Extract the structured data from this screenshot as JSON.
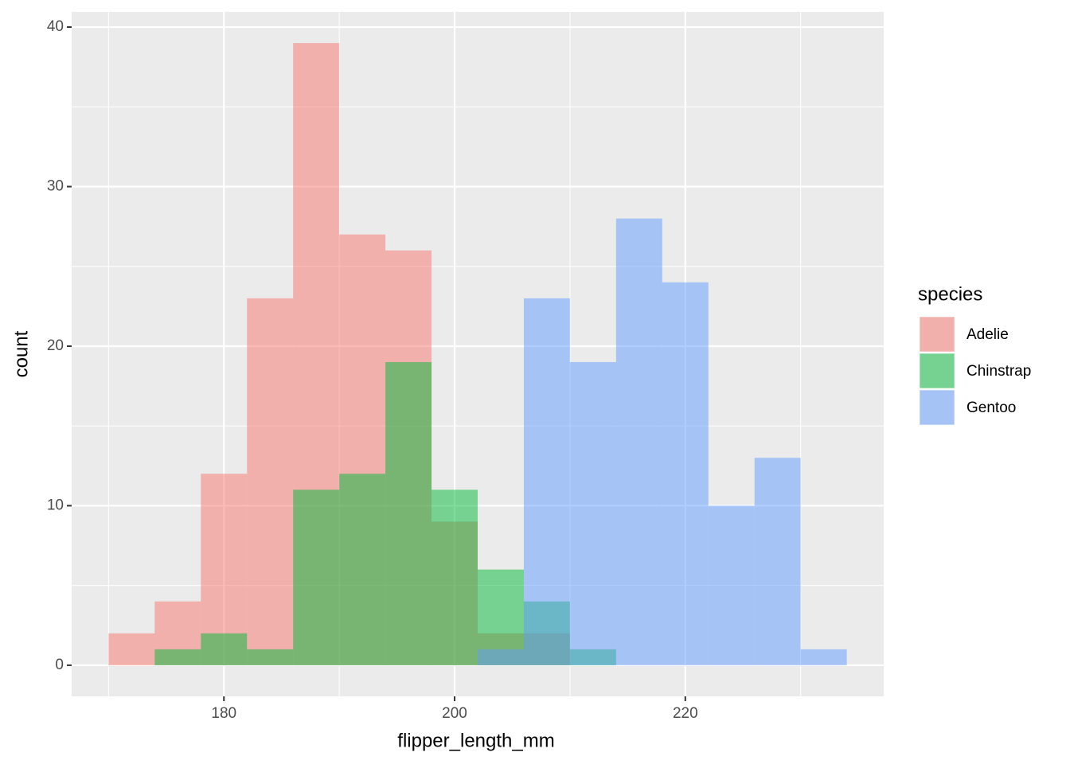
{
  "chart_data": {
    "type": "histogram",
    "x_label": "flipper_length_mm",
    "y_label": "count",
    "legend_title": "species",
    "bins": [
      170,
      174,
      178,
      182,
      186,
      190,
      194,
      198,
      202,
      206,
      210,
      214,
      218,
      222,
      226,
      230,
      234
    ],
    "series": [
      {
        "name": "Adelie",
        "color": "#F8766D",
        "values": [
          2,
          4,
          12,
          23,
          39,
          27,
          26,
          9,
          2,
          2,
          0,
          0,
          0,
          0,
          0,
          0
        ]
      },
      {
        "name": "Chinstrap",
        "color": "#00BA38",
        "values": [
          0,
          1,
          2,
          1,
          11,
          12,
          19,
          11,
          6,
          4,
          1,
          0,
          0,
          0,
          0,
          0
        ]
      },
      {
        "name": "Gentoo",
        "color": "#619CFF",
        "values": [
          0,
          0,
          0,
          0,
          0,
          0,
          0,
          0,
          1,
          23,
          19,
          28,
          24,
          10,
          13,
          1
        ]
      }
    ],
    "opacity": 0.5,
    "xlim": [
      166.8,
      237.2
    ],
    "ylim": [
      -1.95,
      40.95
    ],
    "xticks": [
      180,
      200,
      220
    ],
    "yticks": [
      0,
      10,
      20,
      30,
      40
    ],
    "x_minor_ticks": [
      170,
      190,
      210,
      230
    ],
    "y_minor_ticks": [
      5,
      15,
      25,
      35
    ],
    "grid": true,
    "legend": "right"
  }
}
